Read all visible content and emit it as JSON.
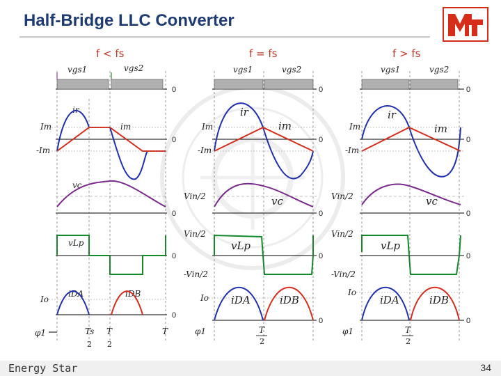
{
  "slide": {
    "title": "Half-Bridge LLC Converter",
    "footer_left": "Energy Star",
    "page_number": "34",
    "logo_text": "MT"
  },
  "panels": [
    {
      "id": "below",
      "header": "f < fs",
      "labels": {
        "vgs1": "vgs1",
        "vgs2": "vgs2",
        "ir": "ir",
        "im": "im",
        "vc": "vc",
        "vLp": "vLp",
        "iDA": "iDA",
        "iDB": "iDB",
        "Im": "Im",
        "negIm": "-Im",
        "Io": "Io",
        "phi": "φ1",
        "zero": "0",
        "t1_num": "Ts",
        "t1_den": "2",
        "t2_num": "T",
        "t2_den": "2",
        "t3": "T"
      }
    },
    {
      "id": "equal",
      "header": "f = fs",
      "labels": {
        "vgs1": "vgs1",
        "vgs2": "vgs2",
        "ir": "ir",
        "im": "im",
        "vc": "vc",
        "vLp": "vLp",
        "iDA": "iDA",
        "iDB": "iDB",
        "Im": "Im",
        "negIm": "-Im",
        "Io": "Io",
        "phi": "φ1",
        "Vin2": "Vin/2",
        "negVin2": "-Vin/2",
        "zero": "0",
        "t_num": "T",
        "t_den": "2"
      }
    },
    {
      "id": "above",
      "header": "f > fs",
      "labels": {
        "vgs1": "vgs1",
        "vgs2": "vgs2",
        "ir": "ir",
        "im": "im",
        "vc": "vc",
        "vLp": "vLp",
        "iDA": "iDA",
        "iDB": "iDB",
        "Im": "Im",
        "negIm": "-Im",
        "Io": "Io",
        "phi": "φ1",
        "Vin2": "Vin/2",
        "negVin2": "-Vin/2",
        "zero": "0",
        "t_num": "T",
        "t_den": "2"
      }
    }
  ],
  "colors": {
    "title": "#1f3b73",
    "current": "#1f2fb0",
    "magnetizing": "#d62c1a",
    "capacitor": "#7a2a8c",
    "gate": "#9b9b9b",
    "logo": "#d62c1a"
  },
  "icons": {
    "watermark": "university-seal-watermark"
  }
}
